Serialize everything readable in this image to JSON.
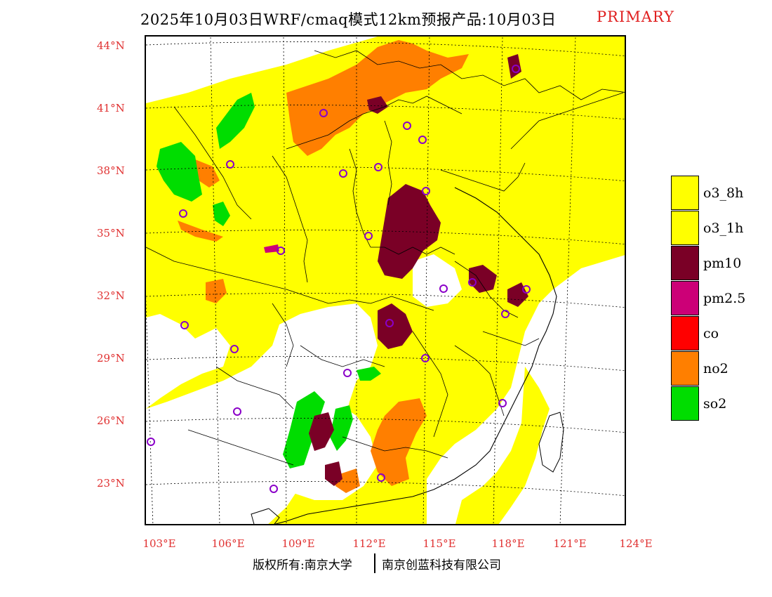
{
  "title": {
    "main": "2025年10月03日WRF/cmaq模式12km预报产品:10月03日",
    "tag": "PRIMARY"
  },
  "map": {
    "latitudes": [
      "44°N",
      "41°N",
      "38°N",
      "35°N",
      "32°N",
      "29°N",
      "26°N",
      "23°N"
    ],
    "longitudes": [
      "103°E",
      "106°E",
      "109°E",
      "112°E",
      "115°E",
      "118°E",
      "121°E",
      "124°E"
    ],
    "colors": {
      "o3_8h": "#ffff00",
      "o3_1h": "#ffff00",
      "pm10": "#7a0026",
      "pm25": "#cc0077",
      "co": "#ff0000",
      "no2": "#ff7f00",
      "so2": "#00dd00",
      "station": "#8a00c8",
      "clean": "#ffffff"
    }
  },
  "legend": [
    {
      "label": "o3_8h",
      "color": "#ffff00"
    },
    {
      "label": "o3_1h",
      "color": "#ffff00"
    },
    {
      "label": "pm10",
      "color": "#7a0026"
    },
    {
      "label": "pm2.5",
      "color": "#cc0077"
    },
    {
      "label": "co",
      "color": "#ff0000"
    },
    {
      "label": "no2",
      "color": "#ff7f00"
    },
    {
      "label": "so2",
      "color": "#00dd00"
    }
  ],
  "footer": {
    "left": "版权所有:南京大学",
    "right": "南京创蓝科技有限公司"
  }
}
